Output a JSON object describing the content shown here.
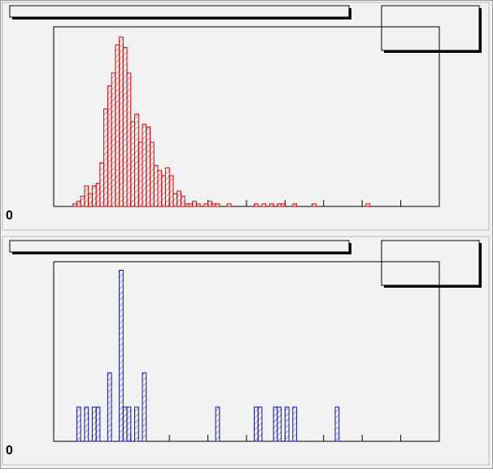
{
  "chart_data": [
    {
      "type": "histogram",
      "color": "#e00000",
      "bins": [
        0,
        1,
        2,
        3,
        4,
        5,
        6,
        7,
        8,
        9,
        10,
        11,
        12,
        13,
        14,
        15,
        16,
        17,
        18,
        19,
        20,
        21,
        22,
        23,
        24,
        25,
        26,
        27,
        28,
        29,
        30,
        31,
        32,
        33,
        34,
        35,
        36,
        37,
        38,
        39,
        40,
        41,
        42,
        43,
        44,
        45,
        46,
        47,
        48,
        49,
        50,
        51,
        52,
        53,
        54,
        55,
        56,
        57,
        58,
        59,
        60,
        61,
        62,
        63,
        64,
        65,
        66,
        67,
        68,
        69,
        70,
        71,
        72,
        73,
        74,
        75,
        76,
        77,
        78,
        79,
        80,
        81,
        82,
        83,
        84,
        85,
        86,
        87,
        88,
        89,
        90,
        91,
        92,
        93,
        94,
        95,
        96,
        97,
        98,
        99,
        100
      ],
      "values": [
        0,
        0,
        0,
        0,
        0,
        1,
        2,
        4,
        8,
        5,
        8,
        9,
        17,
        38,
        47,
        52,
        63,
        66,
        62,
        52,
        33,
        36,
        25,
        32,
        31,
        25,
        16,
        14,
        12,
        15,
        12,
        5,
        6,
        4,
        1,
        1,
        2,
        1,
        0,
        1,
        2,
        1,
        1,
        0,
        0,
        1,
        0,
        0,
        0,
        0,
        0,
        0,
        1,
        0,
        1,
        0,
        1,
        0,
        1,
        1,
        0,
        0,
        1,
        0,
        0,
        0,
        0,
        1,
        0,
        0,
        0,
        0,
        0,
        0,
        0,
        0,
        0,
        0,
        0,
        0,
        0,
        1,
        0,
        0,
        0,
        0,
        0,
        0,
        0,
        0,
        0,
        0,
        0,
        0,
        0,
        0,
        0,
        0,
        0,
        0
      ],
      "xlim": [
        0,
        100
      ],
      "xticks": [
        0,
        10,
        20,
        30,
        40,
        50,
        60,
        70,
        80,
        90,
        100
      ],
      "ylim": [
        0,
        70
      ],
      "yticks": [
        0
      ]
    },
    {
      "type": "histogram",
      "color": "#1010b0",
      "bins": [
        0,
        1,
        2,
        3,
        4,
        5,
        6,
        7,
        8,
        9,
        10,
        11,
        12,
        13,
        14,
        15,
        16,
        17,
        18,
        19,
        20,
        21,
        22,
        23,
        24,
        25,
        26,
        27,
        28,
        29,
        30,
        31,
        32,
        33,
        34,
        35,
        36,
        37,
        38,
        39,
        40,
        41,
        42,
        43,
        44,
        45,
        46,
        47,
        48,
        49,
        50,
        51,
        52,
        53,
        54,
        55,
        56,
        57,
        58,
        59,
        60,
        61,
        62,
        63,
        64,
        65,
        66,
        67,
        68,
        69,
        70,
        71,
        72,
        73,
        74,
        75,
        76,
        77,
        78,
        79,
        80,
        81,
        82,
        83,
        84,
        85,
        86,
        87,
        88,
        89,
        90,
        91,
        92,
        93,
        94,
        95,
        96,
        97,
        98,
        99,
        100
      ],
      "values": [
        0,
        0,
        0,
        0,
        0,
        0,
        1,
        0,
        1,
        0,
        1,
        1,
        0,
        0,
        2,
        0,
        0,
        5,
        1,
        1,
        0,
        1,
        0,
        2,
        0,
        0,
        0,
        0,
        0,
        0,
        0,
        0,
        0,
        0,
        0,
        0,
        0,
        0,
        0,
        0,
        0,
        0,
        1,
        0,
        0,
        0,
        0,
        0,
        0,
        0,
        0,
        0,
        1,
        1,
        0,
        0,
        0,
        1,
        1,
        0,
        1,
        0,
        1,
        0,
        0,
        0,
        0,
        0,
        0,
        0,
        0,
        0,
        0,
        1,
        0,
        0,
        0,
        0,
        0,
        0,
        0,
        0,
        0,
        0,
        0,
        0,
        0,
        0,
        0,
        0,
        0,
        0,
        0,
        0,
        0,
        0,
        0,
        0,
        0,
        0
      ],
      "xlim": [
        0,
        100
      ],
      "xticks": [
        0,
        10,
        20,
        30,
        40,
        50,
        60,
        70,
        80,
        90,
        100
      ],
      "ylim": [
        0,
        5.25
      ],
      "yticks": [
        0
      ]
    }
  ]
}
